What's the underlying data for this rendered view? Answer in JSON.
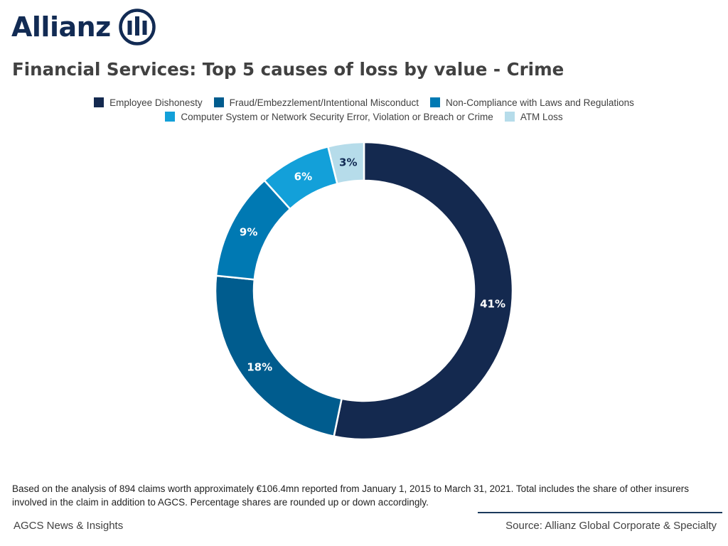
{
  "brand": {
    "name": "Allianz",
    "color": "#122b54"
  },
  "title": "Financial Services: Top 5 causes of loss by value - Crime",
  "chart_data": {
    "type": "pie",
    "subtype": "donut",
    "legend_position": "top",
    "series": [
      {
        "name": "Employee Dishonesty",
        "value": 41,
        "label": "41%",
        "color": "#14294f",
        "label_color": "#ffffff"
      },
      {
        "name": "Fraud/Embezzlement/Intentional Misconduct",
        "value": 18,
        "label": "18%",
        "color": "#005c8e",
        "label_color": "#ffffff"
      },
      {
        "name": "Non-Compliance with Laws and Regulations",
        "value": 9,
        "label": "9%",
        "color": "#0079b3",
        "label_color": "#ffffff"
      },
      {
        "name": "Computer System or Network Security Error, Violation or Breach or Crime",
        "value": 6,
        "label": "6%",
        "color": "#13a0d9",
        "label_color": "#ffffff"
      },
      {
        "name": "ATM Loss",
        "value": 3,
        "label": "3%",
        "color": "#b6dcea",
        "label_color": "#122b54"
      }
    ]
  },
  "footnote": "Based on the analysis of 894 claims worth approximately €106.4mn reported from January 1, 2015 to March 31, 2021. Total includes the share of other insurers involved in the claim in addition to AGCS. Percentage shares are rounded up or down accordingly.",
  "footer": {
    "left": "AGCS News & Insights",
    "right": "Source: Allianz Global Corporate & Specialty"
  }
}
